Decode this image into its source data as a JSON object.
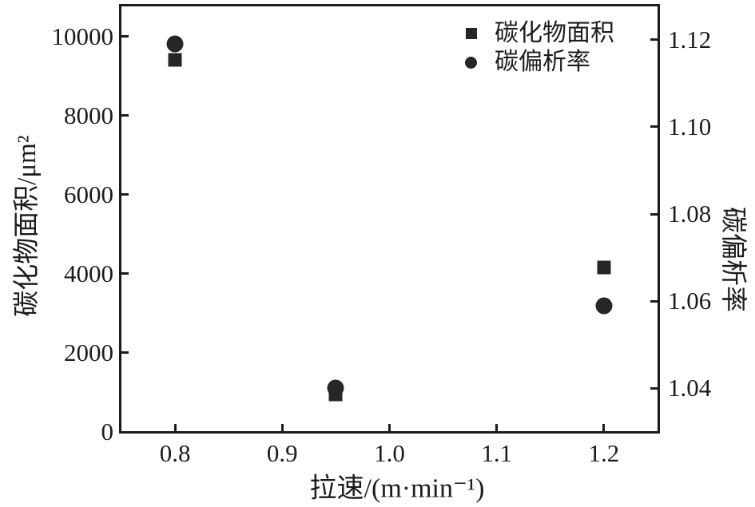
{
  "figure": {
    "background_color": "#ffffff",
    "ink_color": "#1c1c1c",
    "marker_color": "#262626"
  },
  "chart_data": {
    "type": "scatter",
    "title": "",
    "xlabel": "拉速/(m·min⁻¹)",
    "ylabel_left": "碳化物面积/μm²",
    "ylabel_right": "碳偏析率",
    "x_range": [
      0.75,
      1.25
    ],
    "y_left_range": [
      0,
      10800
    ],
    "y_right_range": [
      1.03,
      1.128
    ],
    "x_ticks": [
      0.8,
      0.9,
      1.0,
      1.1,
      1.2
    ],
    "x_tick_labels": [
      "0.8",
      "0.9",
      "1.0",
      "1.1",
      "1.2"
    ],
    "y_left_ticks": [
      0,
      2000,
      4000,
      6000,
      8000,
      10000
    ],
    "y_left_tick_labels": [
      "0",
      "2000",
      "4000",
      "6000",
      "8000",
      "10000"
    ],
    "y_right_ticks": [
      1.04,
      1.06,
      1.08,
      1.1,
      1.12
    ],
    "y_right_tick_labels": [
      "1.04",
      "1.06",
      "1.08",
      "1.10",
      "1.12"
    ],
    "grid": false,
    "legend_position": "top-right-inside",
    "x": [
      0.8,
      0.95,
      1.2
    ],
    "series": [
      {
        "name": "碳化物面积",
        "marker": "square",
        "axis": "left",
        "values": [
          9400,
          950,
          4150
        ]
      },
      {
        "name": "碳偏析率",
        "marker": "circle",
        "axis": "right",
        "values": [
          1.119,
          1.04,
          1.059
        ]
      }
    ]
  }
}
